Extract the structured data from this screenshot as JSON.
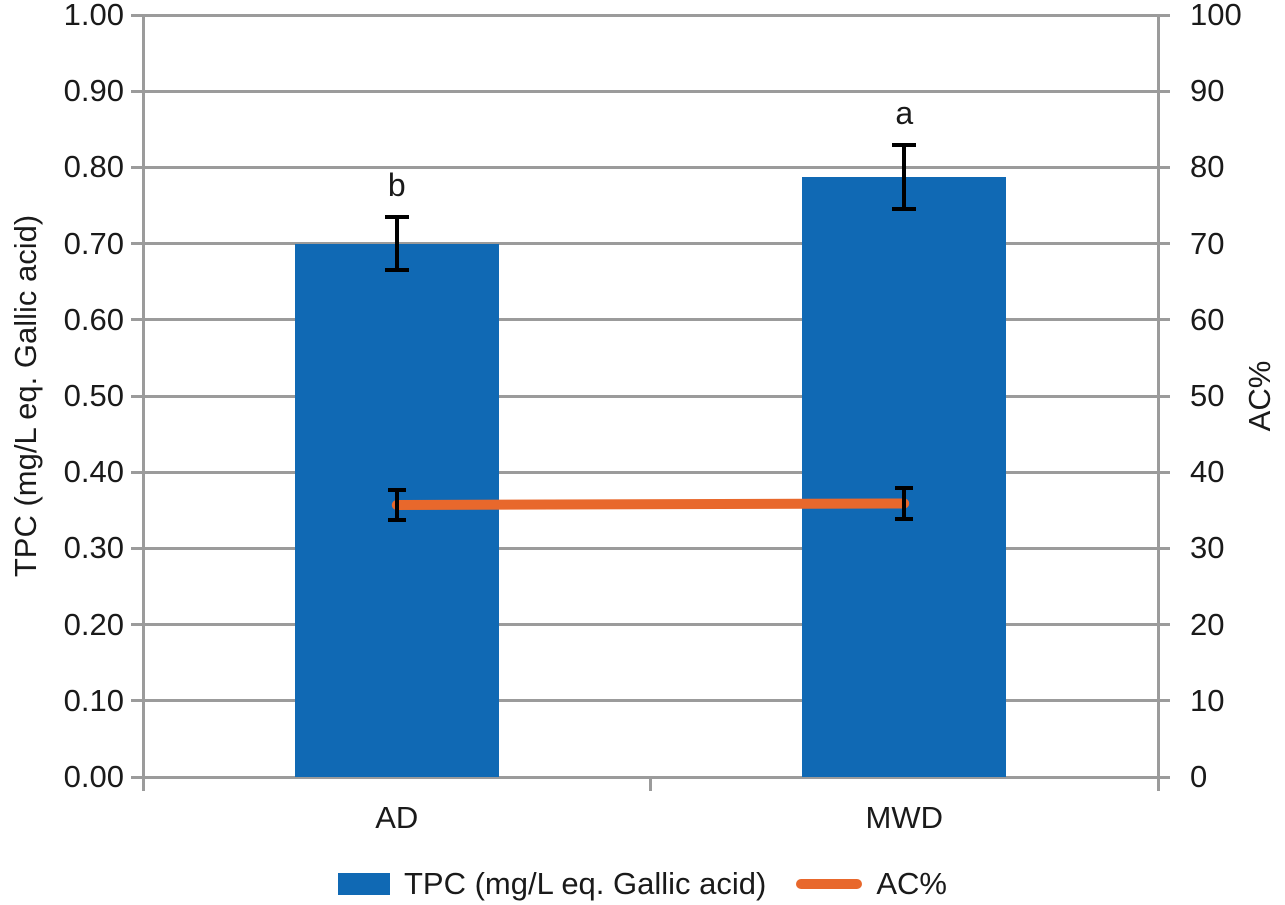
{
  "chart_data": {
    "type": "bar",
    "title": "",
    "categories": [
      "AD",
      "MWD"
    ],
    "series": [
      {
        "name": "TPC (mg/L eq. Gallic acid)",
        "type": "bar",
        "axis": "left",
        "values": [
          0.7,
          0.787
        ],
        "error_bars": [
          0.035,
          0.042
        ],
        "sig_letters": [
          "b",
          "a"
        ],
        "color": "#1069b4"
      },
      {
        "name": "AC%",
        "type": "line",
        "axis": "right",
        "values": [
          35.7,
          35.9
        ],
        "error_bars": [
          2.0,
          2.0
        ],
        "color": "#e8682c"
      }
    ],
    "left_axis": {
      "label": "TPC (mg/L eq. Gallic acid)",
      "min": 0.0,
      "max": 1.0,
      "step": 0.1,
      "ticks": [
        "0.00",
        "0.10",
        "0.20",
        "0.30",
        "0.40",
        "0.50",
        "0.60",
        "0.70",
        "0.80",
        "0.90",
        "1.00"
      ]
    },
    "right_axis": {
      "label": "AC%",
      "min": 0,
      "max": 100,
      "step": 10,
      "ticks": [
        "0",
        "10",
        "20",
        "30",
        "40",
        "50",
        "60",
        "70",
        "80",
        "90",
        "100"
      ]
    },
    "grid": true,
    "legend_position": "bottom",
    "legend": [
      {
        "label": "TPC (mg/L eq. Gallic acid)",
        "swatch": "bar",
        "color": "#1069b4"
      },
      {
        "label": "AC%",
        "swatch": "line",
        "color": "#e8682c"
      }
    ],
    "colors": {
      "gridline": "#9b9b9b",
      "text": "#1a1a1a",
      "error_bar": "#000000",
      "background": "#ffffff"
    }
  }
}
